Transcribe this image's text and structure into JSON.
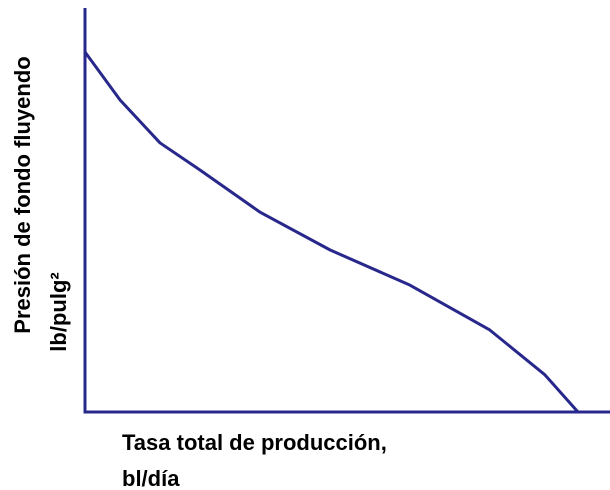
{
  "chart_data": {
    "type": "line",
    "y_label": "Presión de fondo fluyendo",
    "y_unit": "lb/pulg²",
    "x_label": "Tasa total de producción,",
    "x_unit": "bl/día",
    "x": [
      0,
      6.7,
      14.3,
      21.9,
      33.3,
      46.7,
      61.9,
      77.1,
      87.6,
      93.9
    ],
    "series": [
      {
        "color": "#28288c",
        "values": [
          89.1,
          77.2,
          66.6,
          59.9,
          49.5,
          40.1,
          31.4,
          20.3,
          9.2,
          0
        ]
      }
    ],
    "xlim": [
      0,
      100
    ],
    "ylim": [
      0,
      100
    ]
  }
}
